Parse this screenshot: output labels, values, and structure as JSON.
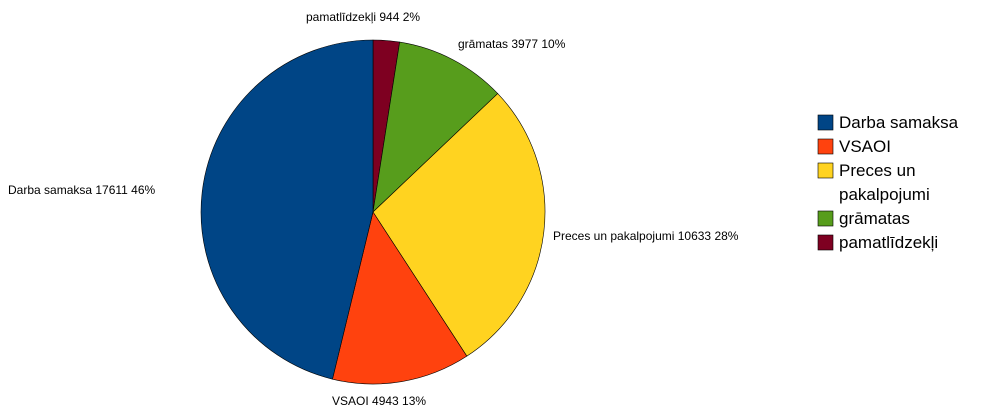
{
  "chart_data": {
    "type": "pie",
    "title": "",
    "slices": [
      {
        "name": "Darba samaksa",
        "value": 17611,
        "percent": "46%",
        "color": "#004586"
      },
      {
        "name": "VSAOI",
        "value": 4943,
        "percent": "13%",
        "color": "#ff420e"
      },
      {
        "name": "Preces un pakalpojumi",
        "value": 10633,
        "percent": "28%",
        "color": "#ffd320"
      },
      {
        "name": "grāmatas",
        "value": 3977,
        "percent": "10%",
        "color": "#579d1c"
      },
      {
        "name": "pamatlīdzekļi",
        "value": 944,
        "percent": "2%",
        "color": "#7e0021"
      }
    ],
    "slice_labels": [
      "Darba samaksa 17611 46%",
      "VSAOI 4943 13%",
      "Preces un pakalpojumi 10633 28%",
      "grāmatas 3977 10%",
      "pamatlīdzekļi 944 2%"
    ],
    "legend": {
      "position": "right",
      "items": [
        {
          "lines": [
            "Darba samaksa"
          ],
          "color": "#004586"
        },
        {
          "lines": [
            "VSAOI"
          ],
          "color": "#ff420e"
        },
        {
          "lines": [
            "Preces un",
            "pakalpojumi"
          ],
          "color": "#ffd320"
        },
        {
          "lines": [
            "grāmatas"
          ],
          "color": "#579d1c"
        },
        {
          "lines": [
            "pamatlīdzekļi"
          ],
          "color": "#7e0021"
        }
      ]
    },
    "slice_order": "clockwise from top, reverse of legend order"
  }
}
